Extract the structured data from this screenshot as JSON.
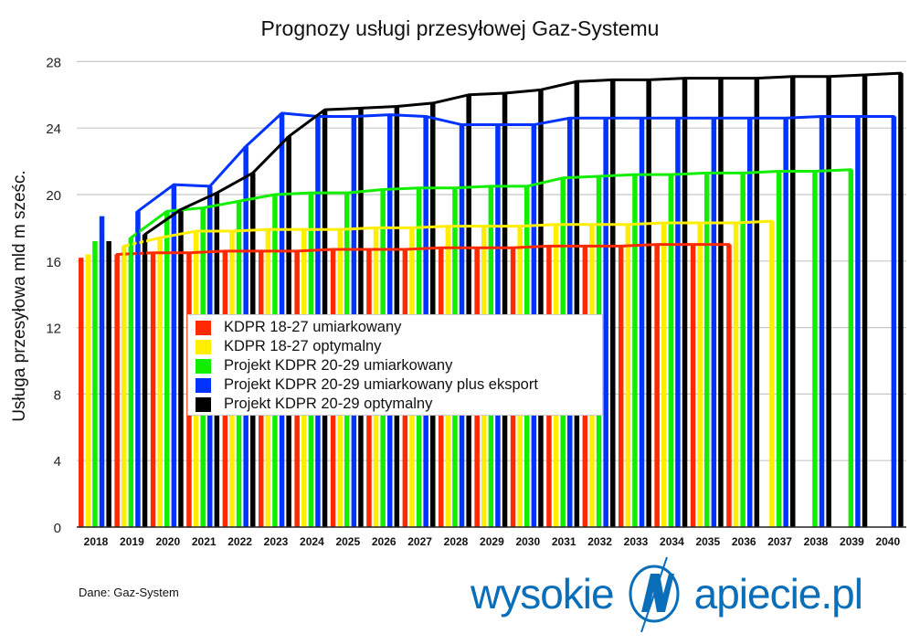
{
  "chart_data": {
    "type": "bar",
    "title": "Prognozy usługi przesyłowej Gaz-Systemu",
    "xlabel": "",
    "ylabel": "Usługa przesyłowa mld m sześc.",
    "ylim": [
      0,
      28
    ],
    "yticks": [
      0,
      4,
      8,
      12,
      16,
      20,
      24,
      28
    ],
    "grid": true,
    "legend_position": "inside-center-left",
    "categories": [
      "2018",
      "2019",
      "2020",
      "2021",
      "2022",
      "2023",
      "2024",
      "2025",
      "2026",
      "2027",
      "2028",
      "2029",
      "2030",
      "2031",
      "2032",
      "2033",
      "2034",
      "2035",
      "2036",
      "2037",
      "2038",
      "2039",
      "2040"
    ],
    "series": [
      {
        "name": "KDPR 18-27 umiarkowany",
        "color": "#ff2a00",
        "values": [
          16.2,
          16.4,
          16.5,
          16.5,
          16.6,
          16.6,
          16.6,
          16.7,
          16.7,
          16.7,
          16.8,
          16.8,
          16.8,
          16.9,
          16.9,
          16.9,
          17.0,
          17.0,
          17.0,
          null,
          null,
          null,
          null
        ]
      },
      {
        "name": "KDPR 18-27 optymalny",
        "color": "#ffee00",
        "values": [
          16.4,
          16.9,
          17.4,
          17.8,
          17.8,
          17.9,
          17.9,
          17.9,
          18.0,
          18.0,
          18.1,
          18.1,
          18.1,
          18.2,
          18.2,
          18.2,
          18.3,
          18.3,
          18.3,
          18.4,
          null,
          null,
          null
        ]
      },
      {
        "name": "Projekt KDPR 20-29 umiarkowany",
        "color": "#11ee00",
        "values": [
          17.2,
          17.4,
          19.0,
          19.2,
          19.6,
          20.0,
          20.1,
          20.1,
          20.3,
          20.4,
          20.4,
          20.5,
          20.5,
          21.0,
          21.1,
          21.2,
          21.2,
          21.3,
          21.3,
          21.4,
          21.4,
          21.5,
          null
        ]
      },
      {
        "name": "Projekt KDPR 20-29 umiarkowany plus eksport",
        "color": "#0033ff",
        "values": [
          18.7,
          19.0,
          20.6,
          20.5,
          22.9,
          24.9,
          24.7,
          24.7,
          24.8,
          24.7,
          24.2,
          24.2,
          24.2,
          24.6,
          24.6,
          24.6,
          24.6,
          24.6,
          24.6,
          24.6,
          24.7,
          24.7,
          24.7
        ]
      },
      {
        "name": "Projekt KDPR 20-29 optymalny",
        "color": "#000000",
        "values": [
          17.2,
          17.6,
          19.1,
          20.1,
          21.3,
          23.5,
          25.1,
          25.2,
          25.3,
          25.5,
          26.0,
          26.1,
          26.3,
          26.8,
          26.9,
          26.9,
          27.0,
          27.0,
          27.0,
          27.1,
          27.1,
          27.2,
          27.3
        ]
      }
    ]
  },
  "footer": {
    "source": "Dane: Gaz-System",
    "logo_left": "wysokie",
    "logo_right": "apiecie.pl"
  }
}
